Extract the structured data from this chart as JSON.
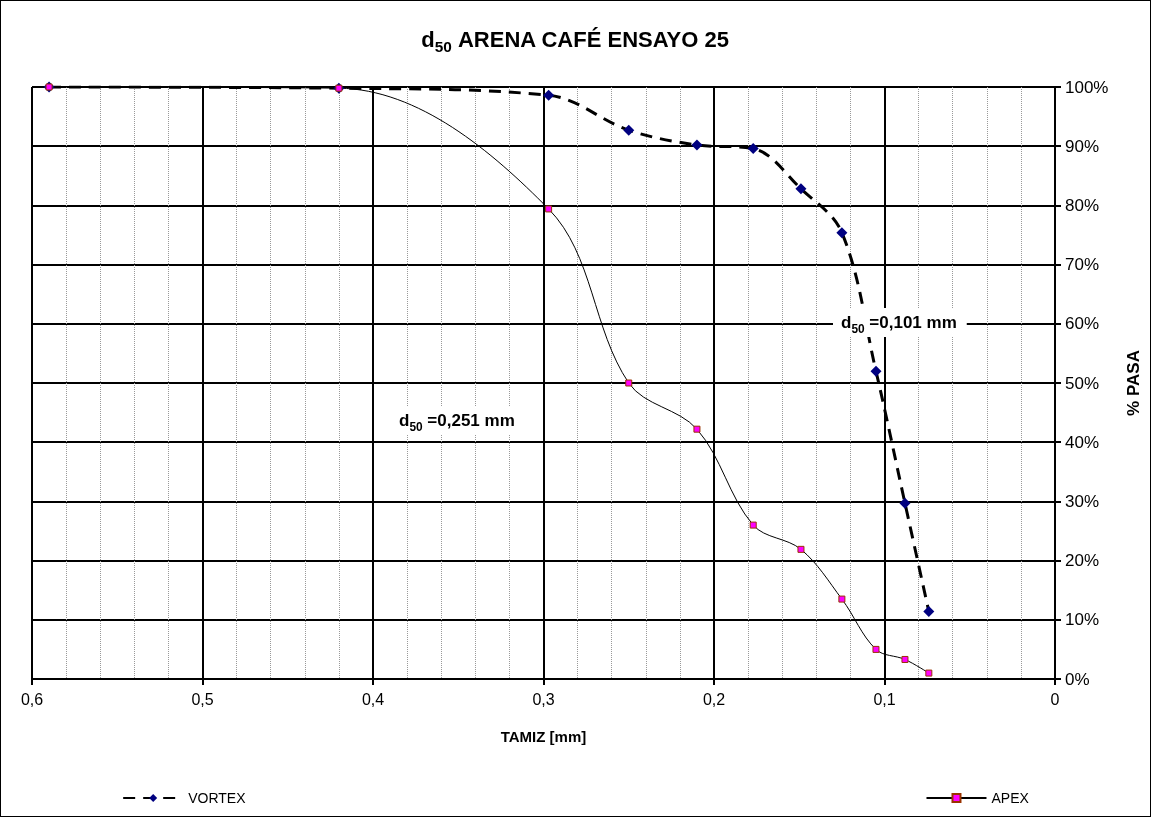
{
  "chart_data": {
    "type": "line",
    "title": "d$_{50}$ ARENA CAFÉ ENSAYO 25",
    "xlabel": "TAMIZ [mm]",
    "ylabel": "% PASA",
    "x": [
      0.59,
      0.42,
      0.297,
      0.25,
      0.21,
      0.177,
      0.149,
      0.125,
      0.105,
      0.088,
      0.074
    ],
    "series": [
      {
        "name": "VORTEX",
        "color": "#000080",
        "values": [
          100,
          99.8,
          98.6,
          92.7,
          90.2,
          89.6,
          82.8,
          75.4,
          52.0,
          29.7,
          11.4
        ],
        "marker": "diamond",
        "line_style": "dashed"
      },
      {
        "name": "APEX",
        "color": "#ff00ff",
        "values": [
          100,
          99.8,
          79.4,
          50.0,
          42.2,
          26.0,
          21.9,
          13.5,
          5.0,
          3.3,
          1.0
        ],
        "marker": "square",
        "line_style": "solid"
      }
    ],
    "xlim": [
      0.6,
      0
    ],
    "xticks": [
      {
        "value": 0.6,
        "label": "0,6"
      },
      {
        "value": 0.5,
        "label": "0,5"
      },
      {
        "value": 0.4,
        "label": "0,4"
      },
      {
        "value": 0.3,
        "label": "0,3"
      },
      {
        "value": 0.2,
        "label": "0,2"
      },
      {
        "value": 0.1,
        "label": "0,1"
      },
      0
    ],
    "ylim": [
      0,
      100
    ],
    "yticks": [
      {
        "value": 0,
        "label": "0%"
      },
      {
        "value": 10,
        "label": "10%"
      },
      {
        "value": 20,
        "label": "20%"
      },
      {
        "value": 30,
        "label": "30%"
      },
      {
        "value": 40,
        "label": "40%"
      },
      {
        "value": 50,
        "label": "50%"
      },
      {
        "value": 60,
        "label": "60%"
      },
      {
        "value": 70,
        "label": "70%"
      },
      {
        "value": 80,
        "label": "80%"
      },
      {
        "value": 90,
        "label": "90%"
      },
      {
        "value": 100,
        "label": "100%"
      }
    ],
    "annotations": [
      "d$_{50}$ =0,251 mm",
      "d$_{50}$ =0,101 mm"
    ],
    "grid": true,
    "legend": "bottom"
  }
}
